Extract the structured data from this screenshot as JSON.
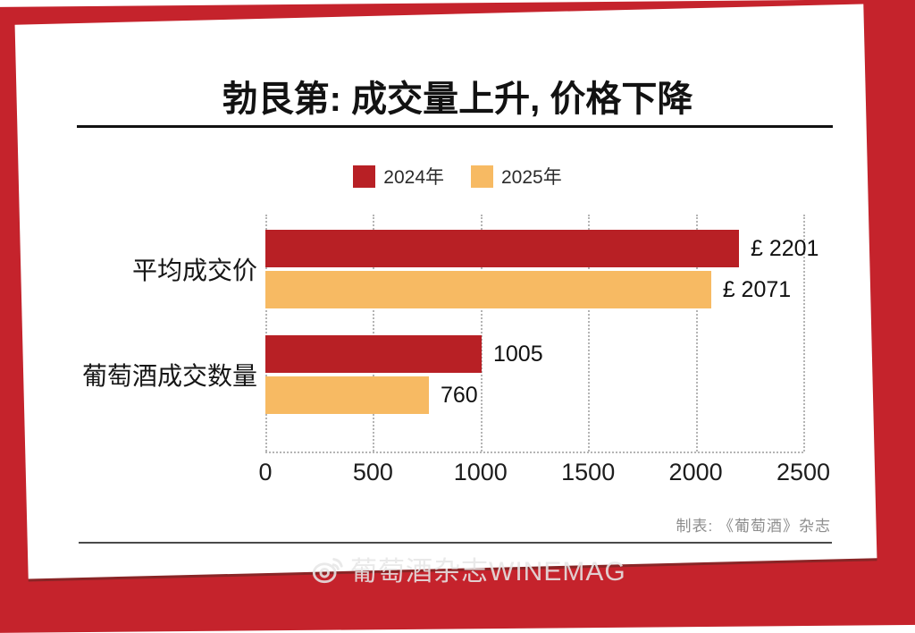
{
  "title": "勃艮第: 成交量上升, 价格下降",
  "credit": "制表: 《葡萄酒》杂志",
  "watermark": {
    "text": "葡萄酒杂志WINEMAG",
    "icon": "weibo-logo-icon"
  },
  "colors": {
    "background_red": "#c5232c",
    "bar_2024_red": "#b82025",
    "bar_2025_orange": "#f7ba63",
    "grid": "#b4b4b4",
    "text": "#121212",
    "credit_gray": "#8d8d8d"
  },
  "chart_data": {
    "type": "bar",
    "orientation": "horizontal",
    "title": "勃艮第: 成交量上升, 价格下降",
    "categories": [
      "平均成交价",
      "葡萄酒成交数量"
    ],
    "series": [
      {
        "name": "2024年",
        "color": "#b82025",
        "values": [
          2201,
          1005
        ],
        "labels": [
          "£ 2201",
          "1005"
        ]
      },
      {
        "name": "2025年",
        "color": "#f7ba63",
        "values": [
          2071,
          760
        ],
        "labels": [
          "£ 2071",
          "760"
        ]
      }
    ],
    "xlim": [
      0,
      2500
    ],
    "ticks": [
      0,
      500,
      1000,
      1500,
      2000,
      2500
    ],
    "grid": "dotted-vertical",
    "legend_position": "top-center",
    "xlabel": "",
    "ylabel": ""
  }
}
